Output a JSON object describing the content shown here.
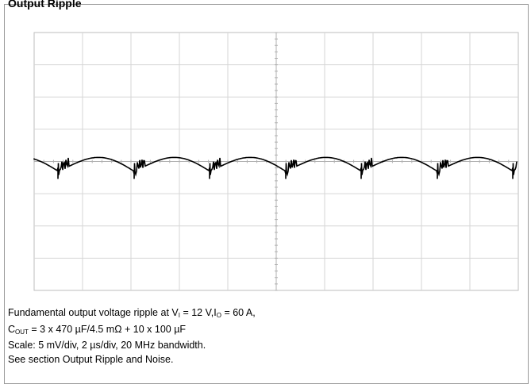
{
  "figure": {
    "title": "Output Ripple",
    "caption": {
      "lines": [
        [
          "Fundamental output voltage ripple at V",
          "I",
          " = 12 V,I",
          "O",
          " = 60 A,"
        ],
        [
          "C",
          "OUT",
          " = 3 x 470 µF/4.5 mΩ + 10 x 100 µF"
        ],
        [
          "Scale: 5 mV/div, 2 µs/div, 20 MHz bandwidth."
        ],
        [
          "See section Output Ripple and Noise."
        ]
      ]
    }
  }
}
